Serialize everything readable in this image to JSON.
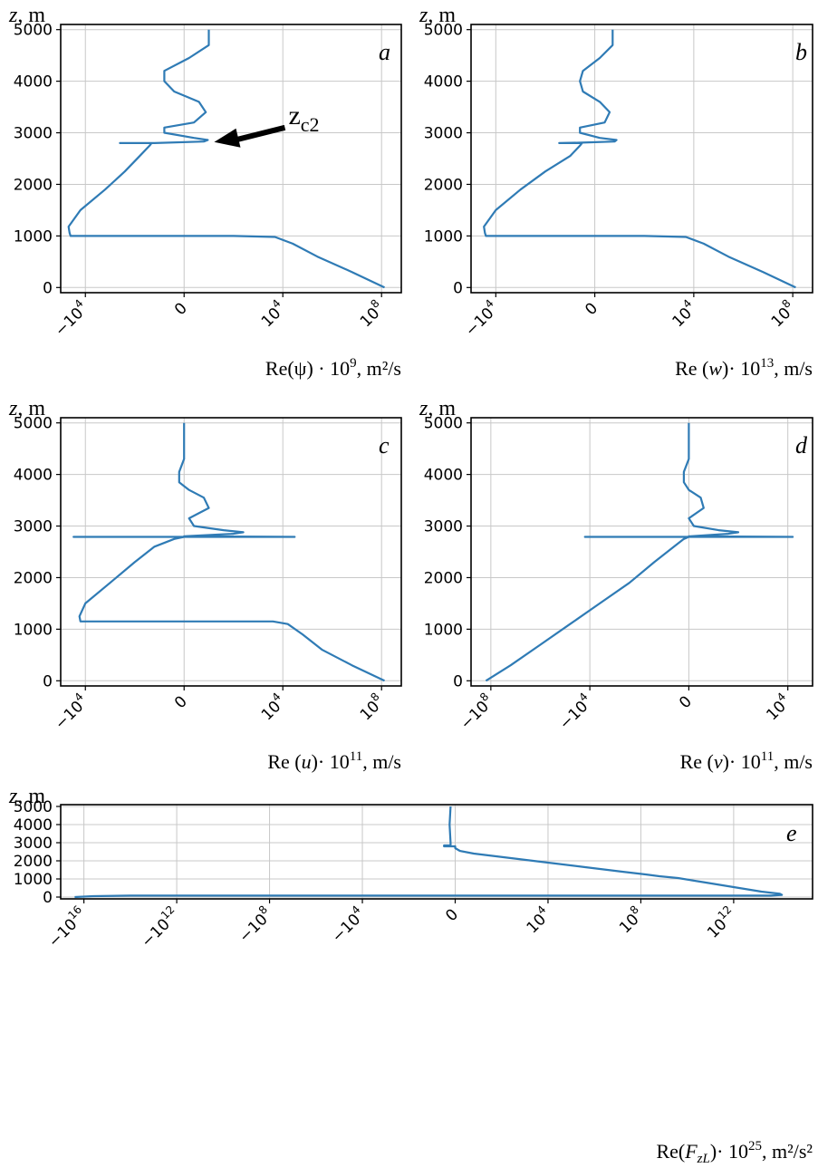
{
  "chart_data": [
    {
      "panel": "a",
      "type": "line",
      "ylabel_var": "z",
      "ylabel_unit": ", m",
      "xlabel_html": "Re(ψ) · 10<tspan dy=\"-9\" font-size=\"15\">9</tspan><tspan dy=\"9\">, m²/s</tspan>",
      "xticks": [
        "−10<tspan dy='-8' font-size='12'>4</tspan>",
        "0",
        "10<tspan dy='-8' font-size='12'>4</tspan>",
        "10<tspan dy='-8' font-size='12'>8</tspan>"
      ],
      "xtick_pos": [
        -1,
        0,
        1,
        2
      ],
      "yticks": [
        0,
        1000,
        2000,
        3000,
        4000,
        5000
      ],
      "xlim": [
        -1.25,
        2.2
      ],
      "ylim": [
        -100,
        5100
      ],
      "annotation": {
        "text": "z",
        "sub": "c2",
        "z": 2820,
        "x": 0.25
      },
      "points": [
        [
          2.03,
          0
        ],
        [
          1.7,
          300
        ],
        [
          1.35,
          600
        ],
        [
          1.1,
          850
        ],
        [
          0.92,
          980
        ],
        [
          0.5,
          1000
        ],
        [
          -1.15,
          1000
        ],
        [
          -1.16,
          1060
        ],
        [
          -1.17,
          1180
        ],
        [
          -1.05,
          1500
        ],
        [
          -0.8,
          1900
        ],
        [
          -0.6,
          2250
        ],
        [
          -0.45,
          2550
        ],
        [
          -0.35,
          2750
        ],
        [
          -0.33,
          2800
        ],
        [
          -0.65,
          2800
        ],
        [
          -0.3,
          2800
        ],
        [
          0.2,
          2830
        ],
        [
          0.24,
          2860
        ],
        [
          0.1,
          2900
        ],
        [
          -0.2,
          3000
        ],
        [
          -0.2,
          3100
        ],
        [
          0.1,
          3200
        ],
        [
          0.22,
          3400
        ],
        [
          0.15,
          3600
        ],
        [
          -0.1,
          3800
        ],
        [
          -0.2,
          4000
        ],
        [
          -0.2,
          4200
        ],
        [
          0.05,
          4450
        ],
        [
          0.25,
          4700
        ],
        [
          0.25,
          5000
        ]
      ]
    },
    {
      "panel": "b",
      "type": "line",
      "ylabel_var": "z",
      "ylabel_unit": ", m",
      "xlabel_html": "Re (<tspan font-style=\"italic\">w</tspan>)· 10<tspan dy=\"-9\" font-size=\"15\">13</tspan><tspan dy=\"9\">, m/s</tspan>",
      "xticks": [
        "−10<tspan dy='-8' font-size='12'>4</tspan>",
        "0",
        "10<tspan dy='-8' font-size='12'>4</tspan>",
        "10<tspan dy='-8' font-size='12'>8</tspan>"
      ],
      "xtick_pos": [
        -1,
        0,
        1,
        2
      ],
      "yticks": [
        0,
        1000,
        2000,
        3000,
        4000,
        5000
      ],
      "xlim": [
        -1.25,
        2.2
      ],
      "ylim": [
        -100,
        5100
      ],
      "points": [
        [
          2.03,
          0
        ],
        [
          1.7,
          300
        ],
        [
          1.35,
          600
        ],
        [
          1.1,
          850
        ],
        [
          0.92,
          980
        ],
        [
          0.5,
          1000
        ],
        [
          -1.1,
          1000
        ],
        [
          -1.11,
          1060
        ],
        [
          -1.12,
          1180
        ],
        [
          -1.0,
          1500
        ],
        [
          -0.75,
          1900
        ],
        [
          -0.5,
          2250
        ],
        [
          -0.25,
          2550
        ],
        [
          -0.15,
          2750
        ],
        [
          -0.13,
          2800
        ],
        [
          -0.36,
          2800
        ],
        [
          -0.13,
          2810
        ],
        [
          0.2,
          2830
        ],
        [
          0.22,
          2860
        ],
        [
          0.05,
          2900
        ],
        [
          -0.15,
          3000
        ],
        [
          -0.15,
          3100
        ],
        [
          0.1,
          3200
        ],
        [
          0.15,
          3400
        ],
        [
          0.05,
          3600
        ],
        [
          -0.12,
          3800
        ],
        [
          -0.15,
          4000
        ],
        [
          -0.12,
          4200
        ],
        [
          0.05,
          4450
        ],
        [
          0.18,
          4700
        ],
        [
          0.18,
          5000
        ]
      ]
    },
    {
      "panel": "c",
      "type": "line",
      "ylabel_var": "z",
      "ylabel_unit": ", m",
      "xlabel_html": "Re (<tspan font-style=\"italic\">u</tspan>)· 10<tspan dy=\"-9\" font-size=\"15\">11</tspan><tspan dy=\"9\">, m/s</tspan>",
      "xticks": [
        "−10<tspan dy='-8' font-size='12'>4</tspan>",
        "0",
        "10<tspan dy='-8' font-size='12'>4</tspan>",
        "10<tspan dy='-8' font-size='12'>8</tspan>"
      ],
      "xtick_pos": [
        -1,
        0,
        1,
        2
      ],
      "yticks": [
        0,
        1000,
        2000,
        3000,
        4000,
        5000
      ],
      "xlim": [
        -1.25,
        2.2
      ],
      "ylim": [
        -100,
        5100
      ],
      "points": [
        [
          2.03,
          0
        ],
        [
          1.7,
          300
        ],
        [
          1.4,
          600
        ],
        [
          1.2,
          900
        ],
        [
          1.05,
          1100
        ],
        [
          0.9,
          1150
        ],
        [
          -1.05,
          1150
        ],
        [
          -1.06,
          1250
        ],
        [
          -1.0,
          1500
        ],
        [
          -0.75,
          1900
        ],
        [
          -0.5,
          2300
        ],
        [
          -0.3,
          2600
        ],
        [
          -0.1,
          2750
        ],
        [
          0.0,
          2790
        ],
        [
          -1.12,
          2790
        ],
        [
          1.12,
          2790
        ],
        [
          0.0,
          2800
        ],
        [
          0.5,
          2850
        ],
        [
          0.6,
          2880
        ],
        [
          0.4,
          2920
        ],
        [
          0.1,
          3000
        ],
        [
          0.05,
          3150
        ],
        [
          0.25,
          3350
        ],
        [
          0.2,
          3550
        ],
        [
          0.05,
          3700
        ],
        [
          -0.05,
          3850
        ],
        [
          -0.05,
          4050
        ],
        [
          0.0,
          4300
        ],
        [
          0.0,
          4700
        ],
        [
          0.0,
          5000
        ]
      ]
    },
    {
      "panel": "d",
      "type": "line",
      "ylabel_var": "z",
      "ylabel_unit": ", m",
      "xlabel_html": "Re (<tspan font-style=\"italic\">v</tspan>)· 10<tspan dy=\"-9\" font-size=\"15\">11</tspan><tspan dy=\"9\">, m/s</tspan>",
      "xticks": [
        "−10<tspan dy='-8' font-size='12'>8</tspan>",
        "−10<tspan dy='-8' font-size='12'>4</tspan>",
        "0",
        "10<tspan dy='-8' font-size='12'>4</tspan>"
      ],
      "xtick_pos": [
        -2,
        -1,
        0,
        1
      ],
      "yticks": [
        0,
        1000,
        2000,
        3000,
        4000,
        5000
      ],
      "xlim": [
        -2.2,
        1.25
      ],
      "ylim": [
        -100,
        5100
      ],
      "points": [
        [
          -2.05,
          0
        ],
        [
          -1.8,
          300
        ],
        [
          -1.5,
          700
        ],
        [
          -1.2,
          1100
        ],
        [
          -0.9,
          1500
        ],
        [
          -0.6,
          1900
        ],
        [
          -0.35,
          2300
        ],
        [
          -0.15,
          2600
        ],
        [
          -0.05,
          2750
        ],
        [
          0.0,
          2790
        ],
        [
          -1.05,
          2790
        ],
        [
          1.05,
          2790
        ],
        [
          0.0,
          2800
        ],
        [
          0.4,
          2850
        ],
        [
          0.5,
          2880
        ],
        [
          0.3,
          2920
        ],
        [
          0.05,
          3000
        ],
        [
          0.0,
          3150
        ],
        [
          0.15,
          3350
        ],
        [
          0.12,
          3550
        ],
        [
          0.0,
          3700
        ],
        [
          -0.05,
          3850
        ],
        [
          -0.05,
          4050
        ],
        [
          0.0,
          4300
        ],
        [
          0.0,
          4700
        ],
        [
          0.0,
          5000
        ]
      ]
    },
    {
      "panel": "e",
      "type": "line",
      "ylabel_var": "z",
      "ylabel_unit": ", m",
      "xlabel_html": "Re(<tspan font-style=\"italic\">F</tspan><tspan dy=\"5\" font-size=\"15\" font-style=\"italic\">zL</tspan><tspan dy=\"-5\">)· 10</tspan><tspan dy=\"-9\" font-size=\"15\">25</tspan><tspan dy=\"9\">, m²/s²</tspan>",
      "xticks": [
        "−10<tspan dy='-8' font-size='12'>16</tspan>",
        "−10<tspan dy='-8' font-size='12'>12</tspan>",
        "−10<tspan dy='-8' font-size='12'>8</tspan>",
        "−10<tspan dy='-8' font-size='12'>4</tspan>",
        "0",
        "10<tspan dy='-8' font-size='12'>4</tspan>",
        "10<tspan dy='-8' font-size='12'>8</tspan>",
        "10<tspan dy='-8' font-size='12'>12</tspan>"
      ],
      "xtick_pos": [
        -4,
        -3,
        -2,
        -1,
        0,
        1,
        2,
        3
      ],
      "yticks": [
        0,
        1000,
        2000,
        3000,
        4000,
        5000
      ],
      "xlim": [
        -4.25,
        3.85
      ],
      "ylim": [
        -100,
        5100
      ],
      "points": [
        [
          -4.1,
          0
        ],
        [
          -3.9,
          50
        ],
        [
          -3.5,
          80
        ],
        [
          3.4,
          80
        ],
        [
          3.52,
          120
        ],
        [
          3.5,
          180
        ],
        [
          3.3,
          300
        ],
        [
          3.0,
          550
        ],
        [
          2.7,
          800
        ],
        [
          2.4,
          1050
        ],
        [
          2.2,
          1150
        ],
        [
          2.05,
          1250
        ],
        [
          1.8,
          1400
        ],
        [
          1.4,
          1650
        ],
        [
          1.0,
          1900
        ],
        [
          0.6,
          2150
        ],
        [
          0.2,
          2400
        ],
        [
          0.05,
          2550
        ],
        [
          0.0,
          2700
        ],
        [
          0.0,
          2800
        ],
        [
          -0.12,
          2800
        ],
        [
          -0.12,
          2850
        ],
        [
          -0.05,
          2850
        ],
        [
          -0.05,
          3000
        ],
        [
          -0.06,
          4000
        ],
        [
          -0.05,
          5000
        ]
      ]
    }
  ]
}
